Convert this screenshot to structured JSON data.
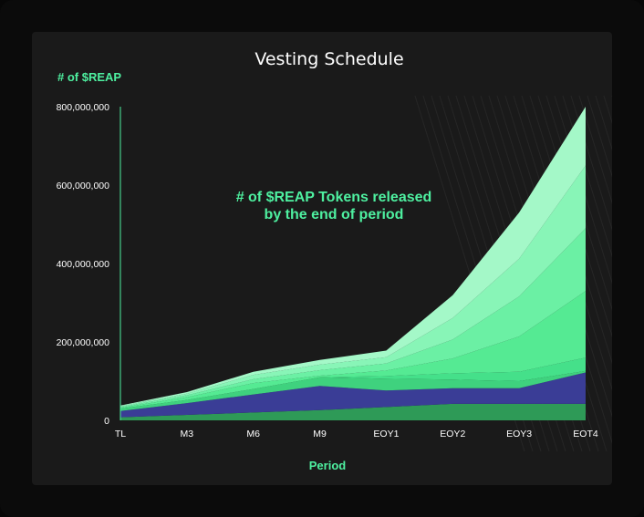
{
  "chart_data": {
    "type": "area",
    "stacked": true,
    "title": "Vesting Schedule",
    "ylabel": "# of $REAP",
    "xlabel": "Period",
    "annotation": [
      "# of $REAP Tokens released",
      "by the end of period"
    ],
    "categories": [
      "TL",
      "M3",
      "M6",
      "M9",
      "EOY1",
      "EOY2",
      "EOY3",
      "EOT4"
    ],
    "yticks": [
      "0",
      "200,000,000",
      "400,000,000",
      "600,000,000",
      "800,000,000"
    ],
    "ylim": [
      0,
      800000000
    ],
    "grid": false,
    "legend": "none",
    "series": [
      {
        "color": "#2e9a57",
        "values": [
          8000000,
          14000000,
          20000000,
          26000000,
          34000000,
          42000000,
          42000000,
          42000000
        ]
      },
      {
        "color": "#3a3d96",
        "values": [
          16000000,
          30000000,
          46000000,
          62000000,
          42000000,
          40000000,
          40000000,
          80000000
        ]
      },
      {
        "color": "#3fd27e",
        "values": [
          6000000,
          8000000,
          14000000,
          22000000,
          30000000,
          22000000,
          18000000,
          4000000
        ]
      },
      {
        "color": "#45e08a",
        "values": [
          0,
          0,
          0,
          0,
          7000000,
          16000000,
          24000000,
          34000000
        ]
      },
      {
        "color": "#55ea93",
        "values": [
          2000000,
          7000000,
          15000000,
          4000000,
          14000000,
          38000000,
          90000000,
          170000000
        ]
      },
      {
        "color": "#6bf0a4",
        "values": [
          2000000,
          5000000,
          10000000,
          14000000,
          18000000,
          48000000,
          102000000,
          160000000
        ]
      },
      {
        "color": "#88f5b7",
        "values": [
          2000000,
          4000000,
          11000000,
          14000000,
          16000000,
          55000000,
          96000000,
          160000000
        ]
      },
      {
        "color": "#a4f8c8",
        "values": [
          2000000,
          4000000,
          8000000,
          12000000,
          17000000,
          58000000,
          118000000,
          150000000
        ]
      }
    ],
    "colors": {
      "accent": "#4ef0a0",
      "axis": "#4ef0a0",
      "background": "#1a1a1a"
    }
  }
}
